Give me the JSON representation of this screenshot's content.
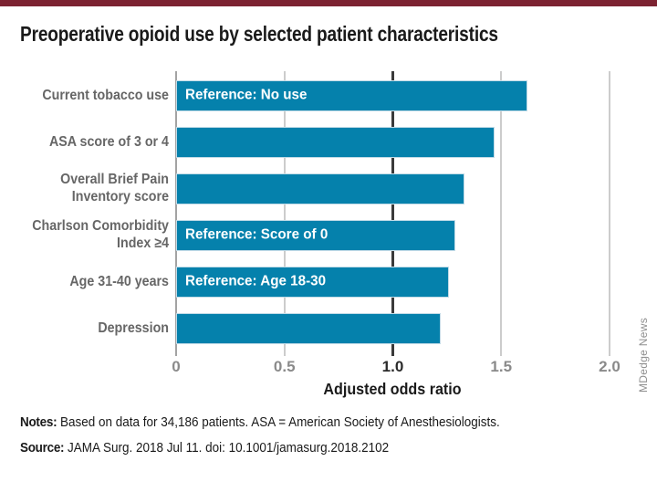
{
  "page": {
    "accent_color": "#7c2231",
    "notes_label": "Notes:",
    "notes_text": " Based on data for 34,186 patients. ASA = American Society of Anesthesiologists.",
    "source_label": "Source:",
    "source_text": " JAMA Surg. 2018 Jul 11. doi: 10.1001/jamasurg.2018.2102",
    "watermark": "MDedge News"
  },
  "chart_data": {
    "type": "bar",
    "orientation": "horizontal",
    "title": "Preoperative opioid use by selected patient characteristics",
    "xlabel": "Adjusted odds ratio",
    "xlim": [
      0,
      2.0
    ],
    "xticks": [
      0,
      0.5,
      1.0,
      1.5,
      2.0
    ],
    "xtick_labels": [
      "0",
      "0.5",
      "1.0",
      "1.5",
      "2.0"
    ],
    "reference_line": 1.0,
    "grid": "vertical",
    "legend": "none",
    "bar_color": "#0581ac",
    "reference_line_color": "#3a3a3a",
    "gridline_color": "#cccccc",
    "axis_line_color": "#a3a3a3",
    "categories": [
      "Current tobacco use",
      "ASA score of 3 or 4",
      "Overall Brief Pain Inventory score",
      "Charlson Comorbidity Index ≥4",
      "Age 31-40 years",
      "Depression"
    ],
    "label_lines": [
      [
        "Current tobacco use"
      ],
      [
        "ASA score of 3 or 4"
      ],
      [
        "Overall Brief Pain",
        "Inventory score"
      ],
      [
        "Charlson Comorbidity",
        "Index ≥4"
      ],
      [
        "Age 31-40 years"
      ],
      [
        "Depression"
      ]
    ],
    "values": [
      1.62,
      1.47,
      1.33,
      1.29,
      1.26,
      1.22
    ],
    "bar_annotations": [
      "Reference: No use",
      "",
      "",
      "Reference: Score of 0",
      "Reference: Age 18-30",
      ""
    ]
  }
}
